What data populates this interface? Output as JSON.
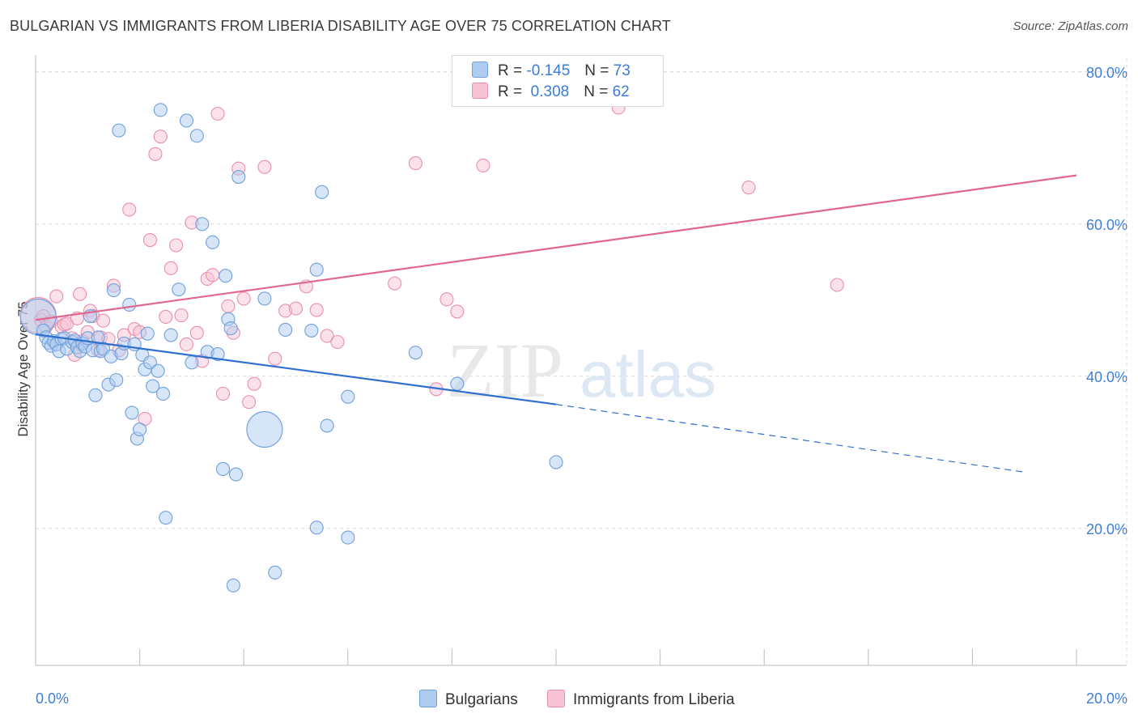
{
  "title": "BULGARIAN VS IMMIGRANTS FROM LIBERIA DISABILITY AGE OVER 75 CORRELATION CHART",
  "source": "Source: ZipAtlas.com",
  "watermark": {
    "zip": "ZIP",
    "atlas": "atlas"
  },
  "legend": {
    "r_label": "R =",
    "n_label": "N =",
    "rows": [
      {
        "r": "-0.145",
        "n": "73",
        "color": "#aecbf0",
        "border": "#6f9fdc"
      },
      {
        "r": "0.308",
        "n": "62",
        "color": "#f8c3d3",
        "border": "#e98fac"
      }
    ]
  },
  "bottom_legend": [
    {
      "label": "Bulgarians",
      "color": "#aecbf0",
      "border": "#6f9fdc"
    },
    {
      "label": "Immigrants from Liberia",
      "color": "#f8c3d3",
      "border": "#e98fac"
    }
  ],
  "chart_data": {
    "type": "scatter",
    "title": "BULGARIAN VS IMMIGRANTS FROM LIBERIA DISABILITY AGE OVER 75 CORRELATION CHART",
    "xlabel": "",
    "ylabel": "Disability Age Over 75",
    "xlim": [
      0,
      20
    ],
    "ylim": [
      2,
      82
    ],
    "x_tick_labels": [
      "0.0%",
      "20.0%"
    ],
    "x_tick_values": [
      0,
      20
    ],
    "y_tick_labels": [
      "20.0%",
      "40.0%",
      "60.0%",
      "80.0%"
    ],
    "y_tick_values": [
      20,
      40,
      60,
      80
    ],
    "grid": true,
    "legend_position": "top-center",
    "colors": {
      "blue_line": "#2f6fd0",
      "pink_line": "#e0658f",
      "grid": "#dcdcdc"
    },
    "series": [
      {
        "name": "Bulgarians",
        "color": "#aecbf0",
        "edge": "#6f9fdc",
        "trend": {
          "x0": 0,
          "y0": 45.5,
          "x1": 10,
          "y1": 36.3,
          "dash_to_x": 19.0,
          "dash_to_y": 27.4
        },
        "points": [
          [
            0.05,
            47.8,
            1
          ],
          [
            0.15,
            46.0,
            0
          ],
          [
            0.2,
            45.1,
            0
          ],
          [
            0.25,
            44.4,
            0
          ],
          [
            0.3,
            44.0,
            0
          ],
          [
            0.35,
            44.6,
            0
          ],
          [
            0.4,
            44.2,
            0
          ],
          [
            0.45,
            43.3,
            0
          ],
          [
            0.5,
            44.9,
            0
          ],
          [
            0.55,
            45.0,
            0
          ],
          [
            0.6,
            43.6,
            0
          ],
          [
            0.7,
            44.5,
            0
          ],
          [
            0.75,
            44.7,
            0
          ],
          [
            0.8,
            43.8,
            0
          ],
          [
            0.85,
            43.3,
            0
          ],
          [
            0.9,
            44.3,
            0
          ],
          [
            0.95,
            43.9,
            0
          ],
          [
            1.0,
            45.0,
            0
          ],
          [
            1.05,
            47.9,
            0
          ],
          [
            1.1,
            43.4,
            0
          ],
          [
            1.15,
            37.5,
            0
          ],
          [
            1.2,
            45.1,
            0
          ],
          [
            1.25,
            43.3,
            0
          ],
          [
            1.3,
            43.6,
            0
          ],
          [
            1.4,
            38.9,
            0
          ],
          [
            1.45,
            42.6,
            0
          ],
          [
            1.5,
            51.3,
            0
          ],
          [
            1.55,
            39.5,
            0
          ],
          [
            1.6,
            72.3,
            0
          ],
          [
            1.65,
            43.0,
            0
          ],
          [
            1.7,
            44.3,
            0
          ],
          [
            1.8,
            49.4,
            0
          ],
          [
            1.85,
            35.2,
            0
          ],
          [
            1.9,
            44.2,
            0
          ],
          [
            1.95,
            31.8,
            0
          ],
          [
            2.0,
            33.0,
            0
          ],
          [
            2.05,
            42.8,
            0
          ],
          [
            2.1,
            40.9,
            0
          ],
          [
            2.15,
            45.6,
            0
          ],
          [
            2.2,
            41.8,
            0
          ],
          [
            2.25,
            38.7,
            0
          ],
          [
            2.35,
            40.7,
            0
          ],
          [
            2.4,
            75.0,
            0
          ],
          [
            2.45,
            37.7,
            0
          ],
          [
            2.5,
            21.4,
            0
          ],
          [
            2.6,
            45.4,
            0
          ],
          [
            2.75,
            51.4,
            0
          ],
          [
            2.9,
            73.6,
            0
          ],
          [
            3.0,
            41.8,
            0
          ],
          [
            3.1,
            71.6,
            0
          ],
          [
            3.2,
            60.0,
            0
          ],
          [
            3.3,
            43.2,
            0
          ],
          [
            3.4,
            57.6,
            0
          ],
          [
            3.5,
            42.9,
            0
          ],
          [
            3.6,
            27.8,
            0
          ],
          [
            3.65,
            53.2,
            0
          ],
          [
            3.7,
            47.5,
            0
          ],
          [
            3.75,
            46.3,
            0
          ],
          [
            3.8,
            12.5,
            0
          ],
          [
            3.85,
            27.1,
            0
          ],
          [
            3.9,
            66.2,
            0
          ],
          [
            4.4,
            50.2,
            0
          ],
          [
            4.6,
            14.2,
            0
          ],
          [
            4.4,
            33.0,
            1
          ],
          [
            4.8,
            46.1,
            0
          ],
          [
            5.4,
            54.0,
            0
          ],
          [
            5.6,
            33.5,
            0
          ],
          [
            6.0,
            18.8,
            0
          ],
          [
            5.3,
            46.0,
            0
          ],
          [
            5.4,
            20.1,
            0
          ],
          [
            5.5,
            64.2,
            0
          ],
          [
            7.3,
            43.1,
            0
          ],
          [
            6.0,
            37.3,
            0
          ],
          [
            8.1,
            39.0,
            0
          ],
          [
            10.0,
            28.7,
            0
          ]
        ]
      },
      {
        "name": "Immigrants from Liberia",
        "color": "#f8c3d3",
        "edge": "#e98fac",
        "trend": {
          "x0": 0,
          "y0": 47.4,
          "x1": 20,
          "y1": 66.4
        },
        "points": [
          [
            0.05,
            48.0,
            1
          ],
          [
            0.1,
            47.4,
            0
          ],
          [
            0.15,
            47.9,
            0
          ],
          [
            0.2,
            46.5,
            0
          ],
          [
            0.3,
            47.2,
            0
          ],
          [
            0.4,
            50.5,
            0
          ],
          [
            0.5,
            46.5,
            0
          ],
          [
            0.55,
            46.8,
            0
          ],
          [
            0.6,
            46.9,
            0
          ],
          [
            0.7,
            45.0,
            0
          ],
          [
            0.75,
            42.8,
            0
          ],
          [
            0.8,
            47.6,
            0
          ],
          [
            0.85,
            50.8,
            0
          ],
          [
            0.9,
            44.6,
            0
          ],
          [
            1.0,
            45.8,
            0
          ],
          [
            1.05,
            48.6,
            0
          ],
          [
            1.1,
            47.9,
            0
          ],
          [
            1.2,
            43.4,
            0
          ],
          [
            1.25,
            45.1,
            0
          ],
          [
            1.3,
            47.3,
            0
          ],
          [
            1.4,
            44.9,
            0
          ],
          [
            1.5,
            51.9,
            0
          ],
          [
            1.6,
            43.4,
            0
          ],
          [
            1.7,
            45.4,
            0
          ],
          [
            1.8,
            61.9,
            0
          ],
          [
            1.9,
            46.2,
            0
          ],
          [
            2.0,
            45.8,
            0
          ],
          [
            2.1,
            34.4,
            0
          ],
          [
            2.2,
            57.9,
            0
          ],
          [
            2.3,
            69.2,
            0
          ],
          [
            2.4,
            71.5,
            0
          ],
          [
            2.5,
            47.8,
            0
          ],
          [
            2.6,
            54.2,
            0
          ],
          [
            2.7,
            57.2,
            0
          ],
          [
            2.8,
            48.0,
            0
          ],
          [
            2.9,
            44.2,
            0
          ],
          [
            3.0,
            60.2,
            0
          ],
          [
            3.1,
            45.7,
            0
          ],
          [
            3.2,
            42.0,
            0
          ],
          [
            3.3,
            52.8,
            0
          ],
          [
            3.4,
            53.3,
            0
          ],
          [
            3.5,
            74.5,
            0
          ],
          [
            3.6,
            37.7,
            0
          ],
          [
            3.7,
            49.2,
            0
          ],
          [
            3.8,
            45.7,
            0
          ],
          [
            3.9,
            67.3,
            0
          ],
          [
            4.0,
            50.2,
            0
          ],
          [
            4.1,
            36.6,
            0
          ],
          [
            4.2,
            39.0,
            0
          ],
          [
            4.4,
            67.5,
            0
          ],
          [
            4.6,
            42.3,
            0
          ],
          [
            4.8,
            48.6,
            0
          ],
          [
            5.0,
            48.9,
            0
          ],
          [
            5.2,
            51.8,
            0
          ],
          [
            5.4,
            48.7,
            0
          ],
          [
            5.6,
            45.3,
            0
          ],
          [
            5.8,
            44.5,
            0
          ],
          [
            6.9,
            52.2,
            0
          ],
          [
            7.3,
            68.0,
            0
          ],
          [
            7.7,
            38.3,
            0
          ],
          [
            7.9,
            50.1,
            0
          ],
          [
            8.1,
            48.5,
            0
          ],
          [
            8.6,
            67.7,
            0
          ],
          [
            11.2,
            75.3,
            0
          ],
          [
            13.7,
            64.8,
            0
          ],
          [
            15.4,
            52.0,
            0
          ]
        ]
      }
    ]
  }
}
